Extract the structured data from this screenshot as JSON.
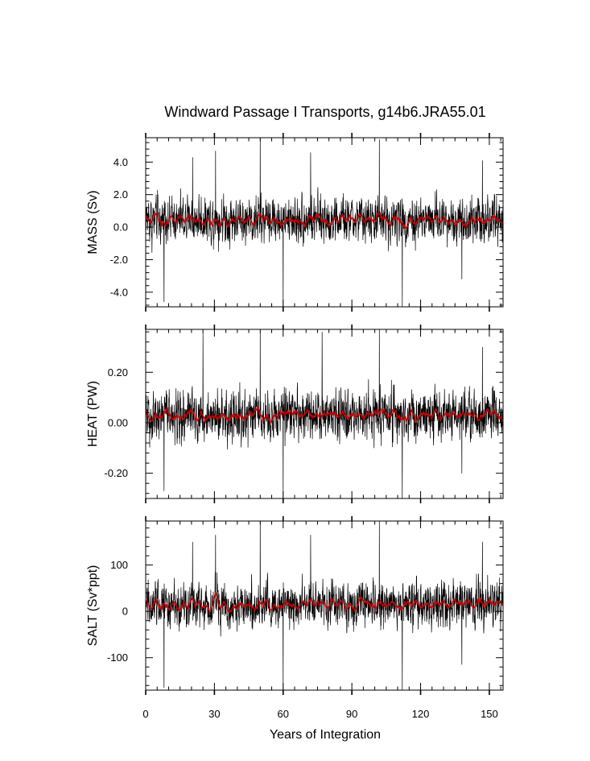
{
  "chart_data": {
    "type": "line",
    "title": "Windward Passage I Transports, g14b6.JRA55.01",
    "xlabel": "Years of Integration",
    "xlim": [
      0,
      156
    ],
    "xticks": [
      0,
      30,
      60,
      90,
      120,
      150
    ],
    "xtick_labels": [
      "0",
      "30",
      "60",
      "90",
      "120",
      "150"
    ],
    "colors": {
      "raw": "#000000",
      "smoothed": "#cc0000"
    },
    "panels": [
      {
        "id": "mass",
        "ylabel": "MASS (Sv)",
        "ylim": [
          -4.9,
          5.5
        ],
        "yticks": [
          4.0,
          2.0,
          0.0,
          -2.0,
          -4.0
        ],
        "ytick_labels": [
          "4.0",
          "2.0",
          "0.0",
          "-2.0",
          "-4.0"
        ],
        "mean": 0.45,
        "amplitude": 1.05,
        "spikes": [
          {
            "x": 8.0,
            "y": -4.6
          },
          {
            "x": 20.5,
            "y": 4.3
          },
          {
            "x": 30.5,
            "y": 4.7
          },
          {
            "x": 50.0,
            "y": 5.5
          },
          {
            "x": 60.0,
            "y": -4.9
          },
          {
            "x": 72.0,
            "y": 4.6
          },
          {
            "x": 102.0,
            "y": 5.4
          },
          {
            "x": 112.0,
            "y": -4.9
          },
          {
            "x": 138.0,
            "y": -3.2
          },
          {
            "x": 147.0,
            "y": 4.1
          }
        ]
      },
      {
        "id": "heat",
        "ylabel": "HEAT (PW)",
        "ylim": [
          -0.3,
          0.37
        ],
        "yticks": [
          0.2,
          0.0,
          -0.2
        ],
        "ytick_labels": [
          "0.20",
          "0.00",
          "-0.20"
        ],
        "mean": 0.03,
        "amplitude": 0.075,
        "spikes": [
          {
            "x": 8.0,
            "y": -0.27
          },
          {
            "x": 25.0,
            "y": 0.36
          },
          {
            "x": 50.0,
            "y": 0.36
          },
          {
            "x": 60.0,
            "y": -0.3
          },
          {
            "x": 77.0,
            "y": 0.36
          },
          {
            "x": 102.0,
            "y": 0.37
          },
          {
            "x": 112.0,
            "y": -0.3
          },
          {
            "x": 138.0,
            "y": -0.2
          },
          {
            "x": 147.0,
            "y": 0.3
          }
        ]
      },
      {
        "id": "salt",
        "ylabel": "SALT (Sv*ppt)",
        "ylim": [
          -170,
          195
        ],
        "yticks": [
          100,
          0,
          -100
        ],
        "ytick_labels": [
          "100",
          "0",
          "-100"
        ],
        "mean": 15,
        "amplitude": 36,
        "spikes": [
          {
            "x": 8.0,
            "y": -165
          },
          {
            "x": 20.5,
            "y": 150
          },
          {
            "x": 30.5,
            "y": 165
          },
          {
            "x": 50.0,
            "y": 195
          },
          {
            "x": 60.0,
            "y": -170
          },
          {
            "x": 72.0,
            "y": 165
          },
          {
            "x": 102.0,
            "y": 195
          },
          {
            "x": 112.0,
            "y": -170
          },
          {
            "x": 138.0,
            "y": -115
          },
          {
            "x": 147.0,
            "y": 150
          }
        ]
      }
    ]
  }
}
